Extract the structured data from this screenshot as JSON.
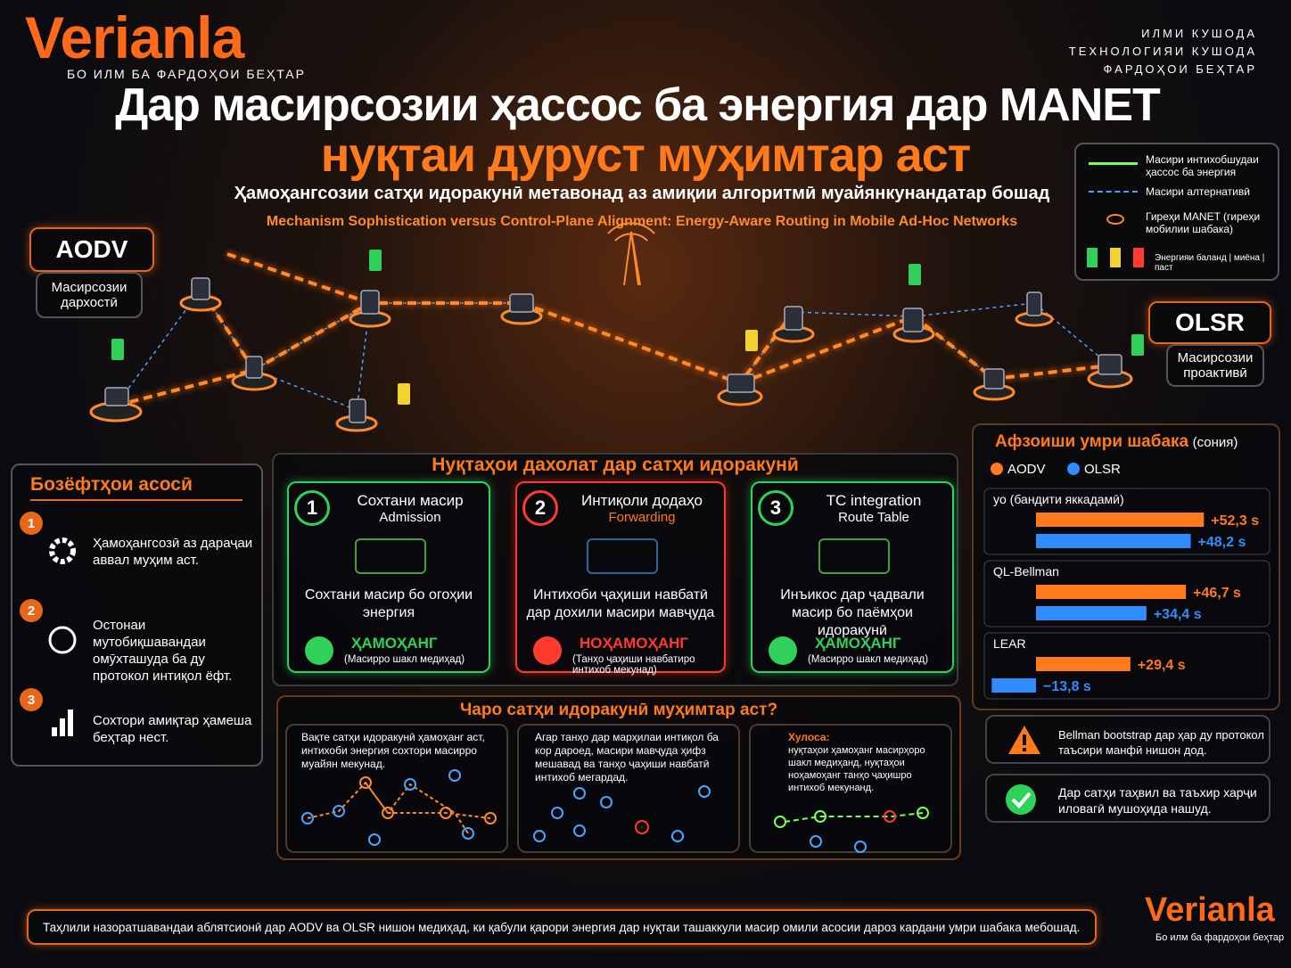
{
  "header": {
    "logo": "Verianla",
    "tagline": "БО ИЛМ БА ФАРДОҲОИ БЕҲТАР",
    "right_lines": [
      "ИЛМИ КУШОДА",
      "ТЕХНОЛОГИЯИ КУШОДА",
      "ФАРДОҲОИ БЕҲТАР"
    ]
  },
  "title": {
    "line1": "Дар масирсозии ҳассос ба энергия дар MANET",
    "line2": "нуқтаи дуруст муҳимтар аст",
    "subtitle": "Ҳамоҳангсозии сатҳи идоракунӣ метавонад аз амиқии алгоритмӣ муайянкунандатар бошад",
    "english": "Mechanism Sophistication versus Control-Plane Alignment: Energy-Aware Routing in Mobile Ad-Hoc Networks"
  },
  "legend": [
    "Масири интихобшудаи ҳассос ба энергия",
    "Масири алтернативӣ",
    "Гиреҳи MANET (гиреҳи мобилии шабака)",
    "Энергияи баланд | миёна | паст"
  ],
  "protocols": [
    {
      "name": "AODV",
      "desc": "Масирсозии дархостӣ"
    },
    {
      "name": "OLSR",
      "desc": "Масирсозии проактивӣ"
    }
  ],
  "findings": {
    "title": "Бозёфтҳои асосӣ",
    "items": [
      {
        "num": "1",
        "text": "Ҳамоҳангсозӣ аз дараҷаи аввал муҳим аст."
      },
      {
        "num": "2",
        "text": "Остонаи мутобиқшавандаи омӯхташуда ба ду протокол интиқол ёфт."
      },
      {
        "num": "3",
        "text": "Сохтори амиқтар ҳамеша беҳтар нест."
      }
    ]
  },
  "intervention": {
    "title": "Нуқтаҳои дахолат дар сатҳи идоракунӣ",
    "cards": [
      {
        "num": "1",
        "title": "Сохтани масир",
        "subtitle": "Admission",
        "desc": "Сохтани масир бо огоҳии энергия",
        "status": "ҲАМОҲАНГ",
        "note": "(Масирро шакл медиҳад)"
      },
      {
        "num": "2",
        "title": "Интиқоли додаҳо",
        "subtitle": "Forwarding",
        "desc": "Интихоби ҷаҳиши навбатӣ дар дохили масири мавҷуда",
        "status": "НОҲАМОҲАНГ",
        "note": "(Танҳо ҷаҳиши навбатиро интихоб мекунад)"
      },
      {
        "num": "3",
        "title": "TC integration",
        "subtitle": "Route Table",
        "desc": "Инъикос дар ҷадвали масир бо паёмҳои идоракунӣ",
        "status": "ҲАМОҲАНГ",
        "note": "(Масирро шакл медиҳад)"
      }
    ]
  },
  "why": {
    "title": "Чаро сатҳи идоракунӣ муҳимтар аст?",
    "panels": [
      "Вақте сатҳи идоракунӣ ҳамоҳанг аст, интихоби энергия сохтори масирро муайян мекунад.",
      "Агар танҳо дар марҳилаи интиқол ба кор дароед, масири мавҷуда ҳифз мешавад ва танҳо ҷаҳиши навбатӣ интихоб мегардад.",
      "нуқтаҳои ҳамоҳанг масирҳоро шакл медиҳанд, нуқтаҳои ноҳамоҳанг танҳо ҷаҳишро интихоб мекунанд."
    ],
    "conclusion_label": "Хулоса:"
  },
  "chart_data": {
    "type": "bar",
    "orientation": "horizontal",
    "title": "Афзоиши умри шабака",
    "unit": "(сония)",
    "categories": [
      "yo (бандити яккадамӣ)",
      "QL-Bellman",
      "LEAR"
    ],
    "series": [
      {
        "name": "AODV",
        "color": "#ff7a1a",
        "values": [
          52.3,
          46.7,
          29.4
        ],
        "value_labels": [
          "+52,3 s",
          "+46,7 s",
          "+29,4 s"
        ]
      },
      {
        "name": "OLSR",
        "color": "#2f8dff",
        "values": [
          48.2,
          34.4,
          -13.8
        ],
        "value_labels": [
          "+48,2 s",
          "+34,4 s",
          "−13,8 s"
        ]
      }
    ]
  },
  "notes": [
    "Bellman bootstrap дар ҳар ду протокол таъсири манфӣ нишон дод.",
    "Дар сатҳи таҳвил ва таъхир харҷи иловагӣ мушоҳида нашуд."
  ],
  "footer": {
    "text": "Таҳлили назоратшавандаи аблятсионӣ дар AODV ва OLSR нишон медиҳад, ки қабули қарори энергия дар нуқтаи ташаккули масир омили асосии дароз кардани умри шабака мебошад.",
    "logo": "Verianla",
    "tagline": "Бо илм ба фардоҳои беҳтар"
  }
}
